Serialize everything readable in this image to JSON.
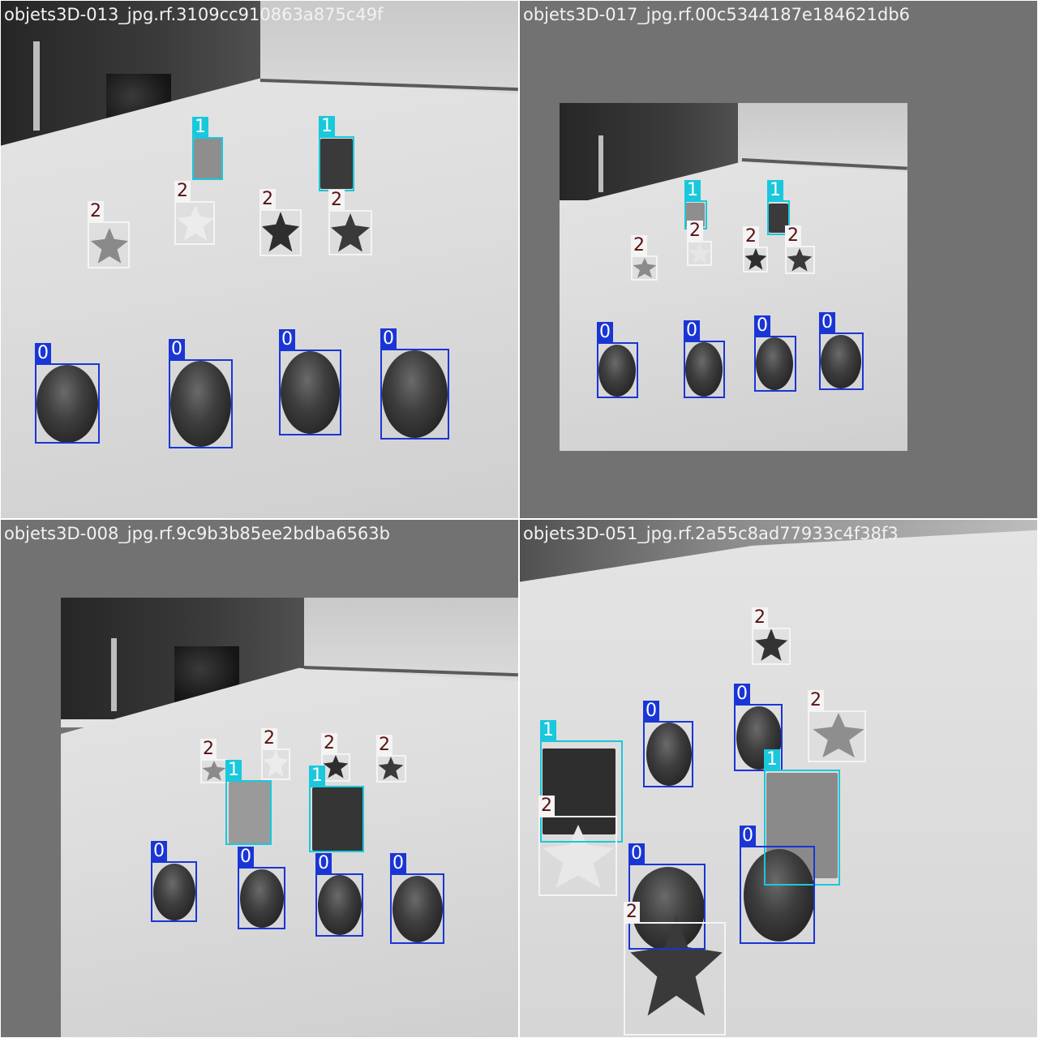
{
  "tiles": [
    {
      "title": "objets3D-013_jpg.rf.3109cc910863a875c49f",
      "detections": [
        {
          "label": "1",
          "cls": "c1"
        },
        {
          "label": "1",
          "cls": "c1"
        },
        {
          "label": "2",
          "cls": "c2"
        },
        {
          "label": "2",
          "cls": "c2"
        },
        {
          "label": "2",
          "cls": "c2"
        },
        {
          "label": "2",
          "cls": "c2"
        },
        {
          "label": "0",
          "cls": "c0"
        },
        {
          "label": "0",
          "cls": "c0"
        },
        {
          "label": "0",
          "cls": "c0"
        },
        {
          "label": "0",
          "cls": "c0"
        }
      ]
    },
    {
      "title": "objets3D-017_jpg.rf.00c5344187e184621db6",
      "detections": [
        {
          "label": "1",
          "cls": "c1"
        },
        {
          "label": "1",
          "cls": "c1"
        },
        {
          "label": "2",
          "cls": "c2"
        },
        {
          "label": "2",
          "cls": "c2"
        },
        {
          "label": "2",
          "cls": "c2"
        },
        {
          "label": "2",
          "cls": "c2"
        },
        {
          "label": "0",
          "cls": "c0"
        },
        {
          "label": "0",
          "cls": "c0"
        },
        {
          "label": "0",
          "cls": "c0"
        },
        {
          "label": "0",
          "cls": "c0"
        }
      ]
    },
    {
      "title": "objets3D-008_jpg.rf.9c9b3b85ee2bdba6563b",
      "detections": [
        {
          "label": "2",
          "cls": "c2"
        },
        {
          "label": "2",
          "cls": "c2"
        },
        {
          "label": "2",
          "cls": "c2"
        },
        {
          "label": "2",
          "cls": "c2"
        },
        {
          "label": "1",
          "cls": "c1"
        },
        {
          "label": "1",
          "cls": "c1"
        },
        {
          "label": "0",
          "cls": "c0"
        },
        {
          "label": "0",
          "cls": "c0"
        },
        {
          "label": "0",
          "cls": "c0"
        },
        {
          "label": "0",
          "cls": "c0"
        }
      ]
    },
    {
      "title": "objets3D-051_jpg.rf.2a55c8ad77933c4f38f3",
      "detections": [
        {
          "label": "2",
          "cls": "c2"
        },
        {
          "label": "0",
          "cls": "c0"
        },
        {
          "label": "0",
          "cls": "c0"
        },
        {
          "label": "2",
          "cls": "c2"
        },
        {
          "label": "1",
          "cls": "c1"
        },
        {
          "label": "1",
          "cls": "c1"
        },
        {
          "label": "2",
          "cls": "c2"
        },
        {
          "label": "0",
          "cls": "c0"
        },
        {
          "label": "0",
          "cls": "c0"
        },
        {
          "label": "2",
          "cls": "c2"
        }
      ]
    }
  ],
  "colors": {
    "class_0": "#1a35d6",
    "class_1": "#19c8dc",
    "class_2": "#f4f4f4"
  }
}
